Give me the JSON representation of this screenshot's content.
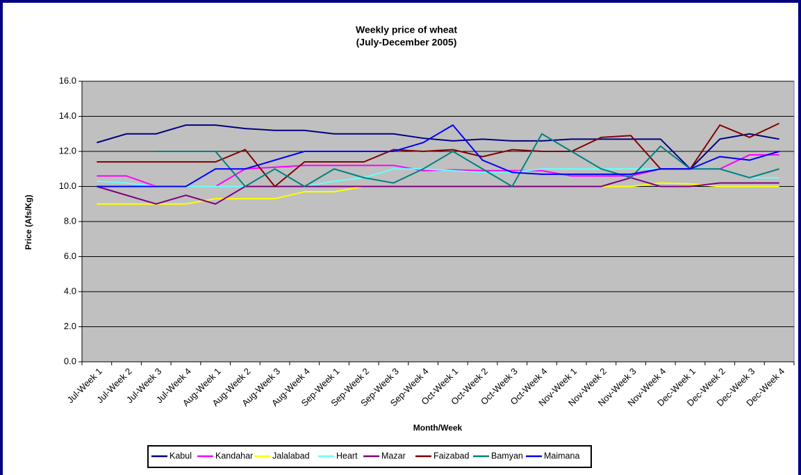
{
  "chart_data": {
    "type": "line",
    "title": "Weekly price of wheat",
    "subtitle": "(July-December 2005)",
    "x_label": "Month/Week",
    "y_label": "Price (Afs/Kg)",
    "categories": [
      "Jul-Week 1",
      "Jul-Week 2",
      "Jul-Week 3",
      "Jul-Week 4",
      "Aug-Week 1",
      "Aug-Week 2",
      "Aug-Week 3",
      "Aug-Week 4",
      "Sep-Week 1",
      "Sep-Week 2",
      "Sep-Week 3",
      "Sep-Week 4",
      "Oct-Week 1",
      "Oct-Week 2",
      "Oct-Week 3",
      "Oct-Week 4",
      "Nov-Week 1",
      "Nov-Week 2",
      "Nov-Week 3",
      "Nov-Week 4",
      "Dec-Week 1",
      "Dec-Week 2",
      "Dec-Week 3",
      "Dec-Week 4"
    ],
    "series": [
      {
        "name": "Kabul",
        "color": "#000080",
        "values": [
          12.5,
          13,
          13,
          13.5,
          13.5,
          13.3,
          13.2,
          13.2,
          13,
          13,
          13,
          12.75,
          12.6,
          12.7,
          12.6,
          12.6,
          12.7,
          12.7,
          12.7,
          12.7,
          11,
          12.7,
          13,
          12.7
        ]
      },
      {
        "name": "Kandahar",
        "color": "#ff00ff",
        "values": [
          10.6,
          10.6,
          10,
          10,
          10,
          11,
          11.1,
          11.2,
          11.2,
          11.2,
          11.2,
          10.9,
          10.95,
          10.9,
          10.9,
          10.9,
          10.6,
          10.6,
          10.6,
          11,
          11,
          11,
          11.8,
          11.8
        ]
      },
      {
        "name": "Jalalabad",
        "color": "#ffff00",
        "values": [
          9,
          9,
          9,
          9,
          9.3,
          9.3,
          9.3,
          9.7,
          9.7,
          10,
          10,
          10,
          10,
          10,
          10,
          10,
          10,
          10,
          10,
          10.2,
          10.15,
          10,
          10,
          10
        ]
      },
      {
        "name": "Heart",
        "color": "#66ffff",
        "values": [
          10.3,
          10.2,
          10,
          10,
          10,
          10,
          10,
          10,
          10.3,
          10.5,
          11,
          11,
          10.9,
          10.8,
          10.8,
          11,
          11,
          11,
          11,
          11,
          11,
          11,
          10.5,
          10.5
        ]
      },
      {
        "name": "Mazar",
        "color": "#800080",
        "values": [
          10,
          9.5,
          9,
          9.5,
          9,
          10,
          10,
          10,
          10,
          10,
          10,
          10,
          10,
          10,
          10,
          10,
          10,
          10,
          10.5,
          10,
          10,
          10.2,
          10.2,
          10.2
        ]
      },
      {
        "name": "Faizabad",
        "color": "#800000",
        "values": [
          11.4,
          11.4,
          11.4,
          11.4,
          11.4,
          12.1,
          10,
          11.4,
          11.4,
          11.4,
          12.1,
          12,
          12.1,
          11.7,
          12.1,
          12,
          12,
          12.8,
          12.9,
          11,
          11,
          13.5,
          12.8,
          13.6
        ]
      },
      {
        "name": "Bamyan",
        "color": "#008080",
        "values": [
          null,
          null,
          12,
          12,
          12,
          10,
          11,
          10,
          11,
          10.5,
          10.2,
          11,
          12,
          11,
          10,
          13,
          12,
          11,
          10.5,
          12.3,
          11,
          11,
          10.5,
          11
        ]
      },
      {
        "name": "Maimana",
        "color": "#0000ff",
        "values": [
          10,
          10,
          10,
          10,
          11,
          11,
          11.5,
          12,
          12,
          12,
          12,
          12.5,
          13.5,
          11.5,
          10.8,
          10.7,
          10.7,
          10.7,
          10.7,
          11,
          11,
          11.7,
          11.5,
          12
        ]
      }
    ],
    "ylim": [
      0,
      16
    ],
    "yticks": [
      {
        "value": 0,
        "label": "0.0"
      },
      {
        "value": 2,
        "label": "2.0"
      },
      {
        "value": 4,
        "label": "4.0"
      },
      {
        "value": 6,
        "label": "6.0"
      },
      {
        "value": 8,
        "label": "8.0"
      },
      {
        "value": 10,
        "label": "10.0"
      },
      {
        "value": 12,
        "label": "12.0"
      },
      {
        "value": 14,
        "label": "14.0"
      },
      {
        "value": 16,
        "label": "16.0"
      }
    ],
    "grid": true,
    "legend": "bottom"
  }
}
